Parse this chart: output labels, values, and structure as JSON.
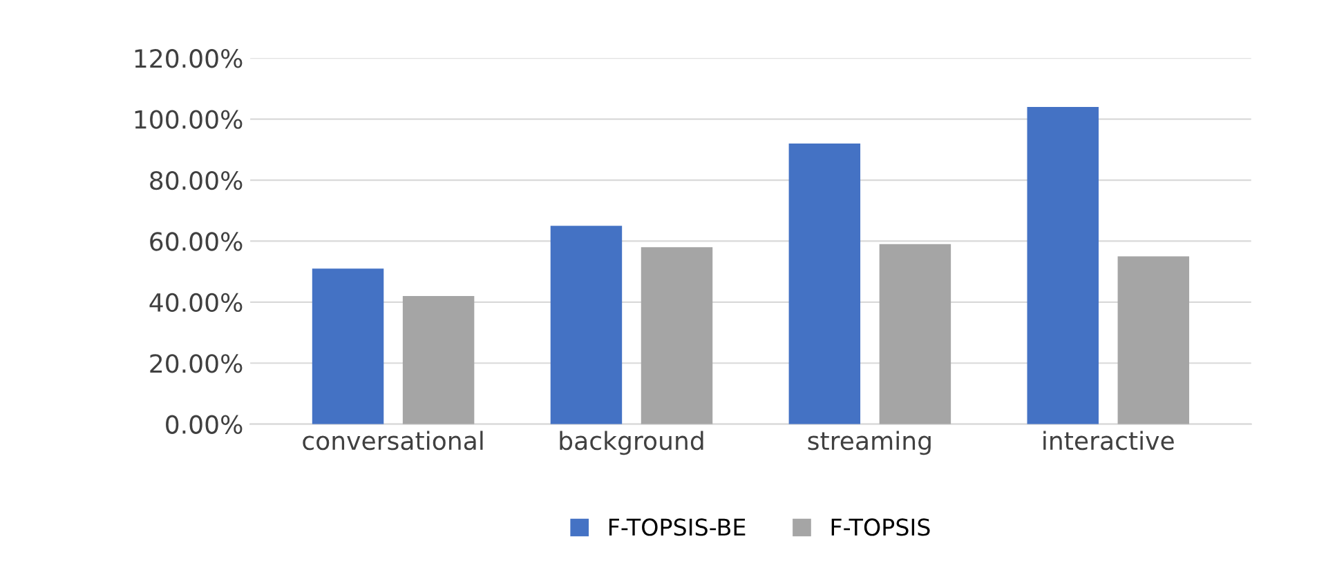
{
  "chart_data": {
    "type": "bar",
    "categories": [
      "conversational",
      "background",
      "streaming",
      "interactive"
    ],
    "series": [
      {
        "name": "F-TOPSIS-BE",
        "color": "#4472c4",
        "values": [
          51,
          65,
          92,
          104
        ]
      },
      {
        "name": "F-TOPSIS",
        "color": "#a5a5a5",
        "values": [
          42,
          58,
          59,
          55
        ]
      }
    ],
    "ylim": [
      0,
      120
    ],
    "yticks": [
      {
        "value": 0,
        "label": "0.00%"
      },
      {
        "value": 20,
        "label": "20.00%"
      },
      {
        "value": 40,
        "label": "40.00%"
      },
      {
        "value": 60,
        "label": "60.00%"
      },
      {
        "value": 80,
        "label": "80.00%"
      },
      {
        "value": 100,
        "label": "100.00%"
      },
      {
        "value": 120,
        "label": "120.00%"
      }
    ],
    "grid": "y",
    "legend": "bottom"
  }
}
